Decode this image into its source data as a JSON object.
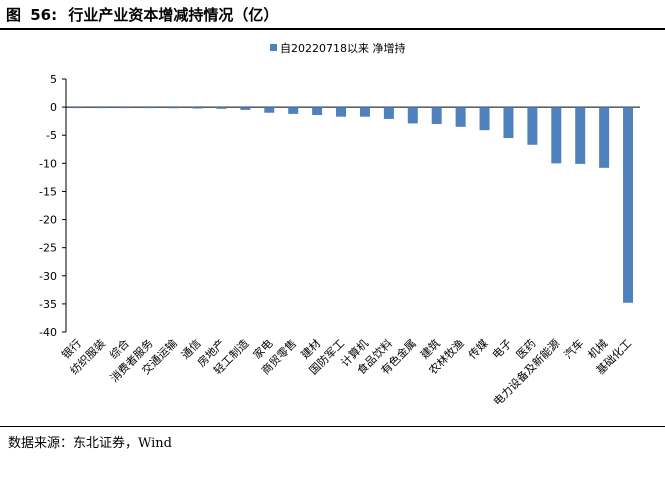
{
  "figure": {
    "label": "图",
    "number": "56:",
    "title": "行业产业资本增减持情况（亿）"
  },
  "source": {
    "prefix": "数据来源：东北证券，",
    "suffix": "Wind"
  },
  "chart_data": {
    "type": "bar",
    "legend": "top-center",
    "grid": false,
    "ylim": [
      -40,
      5
    ],
    "yticks": [
      5,
      0,
      -5,
      -10,
      -15,
      -20,
      -25,
      -30,
      -35,
      -40
    ],
    "series": [
      {
        "name": "自20220718以来 净增持",
        "color": "#4f81bd",
        "values": [
          -0.02,
          -0.05,
          -0.08,
          -0.15,
          -0.2,
          -0.25,
          -0.3,
          -0.5,
          -1.0,
          -1.2,
          -1.4,
          -1.7,
          -1.7,
          -2.1,
          -2.9,
          -3.0,
          -3.5,
          -4.1,
          -5.5,
          -6.7,
          -10.0,
          -10.1,
          -10.8,
          -34.8
        ]
      }
    ],
    "categories": [
      "银行",
      "纺织服装",
      "综合",
      "消费者服务",
      "交通运输",
      "通信",
      "房地产",
      "轻工制造",
      "家电",
      "商贸零售",
      "建材",
      "国防军工",
      "计算机",
      "食品饮料",
      "有色金属",
      "建筑",
      "农林牧渔",
      "传媒",
      "电子",
      "医药",
      "电力设备及新能源",
      "汽车",
      "机械",
      "基础化工"
    ]
  }
}
